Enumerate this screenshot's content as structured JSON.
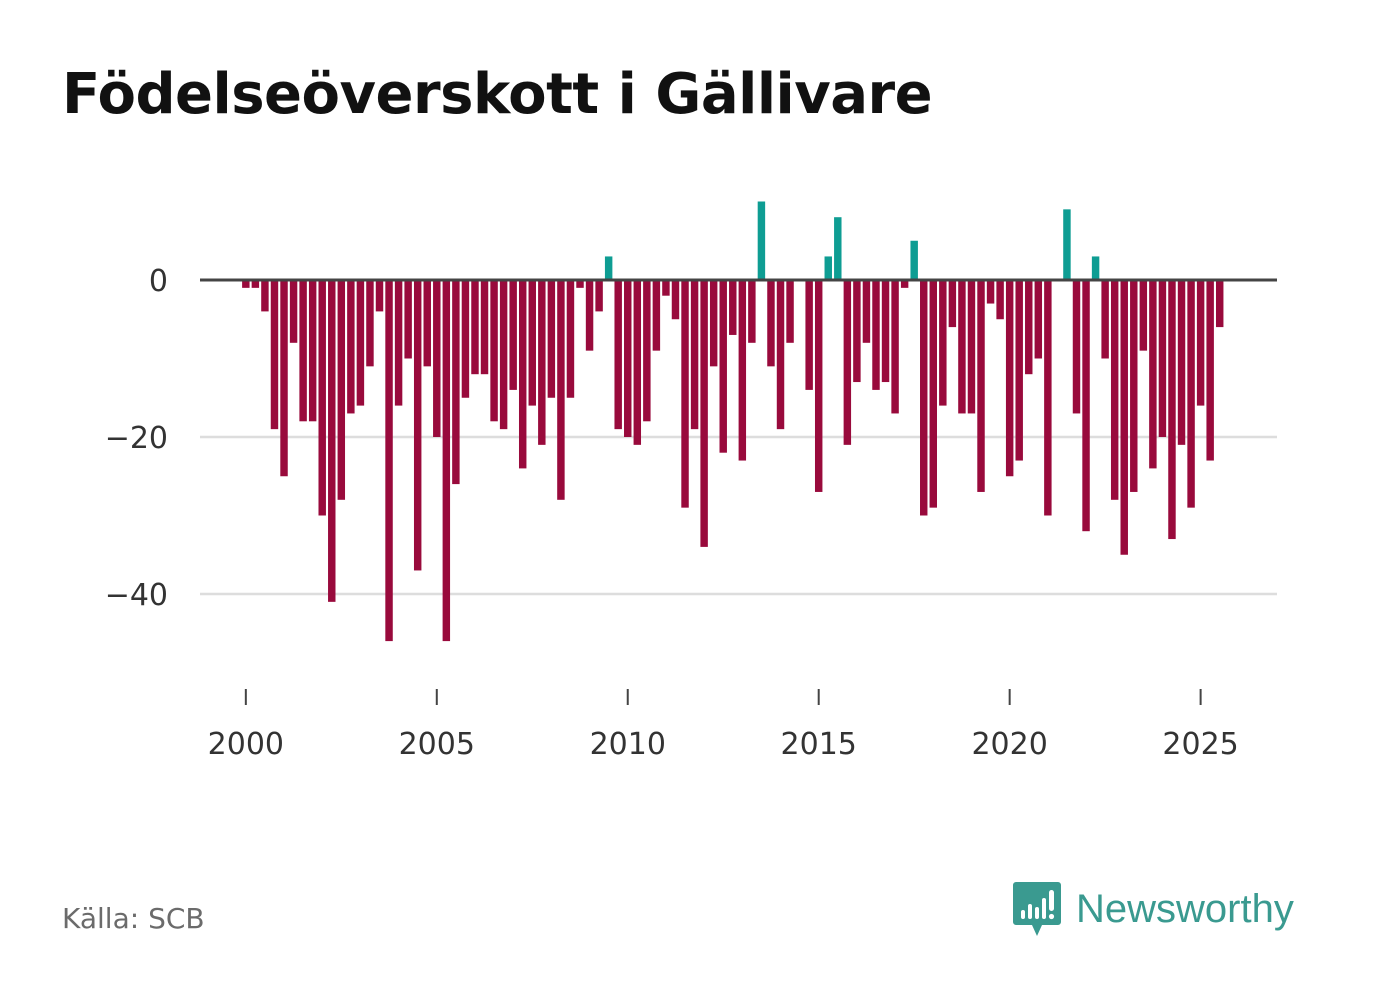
{
  "title": "Födelseöverskott i Gällivare",
  "source": "Källa: SCB",
  "brand": {
    "name": "Newsworthy",
    "icon": "newsworthy-logo-icon"
  },
  "colors": {
    "positive": "#0e9d93",
    "negative": "#990a3c",
    "zero_line": "#444444",
    "grid": "#dddddd",
    "brand": "#3a9a90"
  },
  "chart_data": {
    "type": "bar",
    "title": "Födelseöverskott i Gällivare",
    "xlabel": "",
    "ylabel": "",
    "x_start": 2000.0,
    "x_step": 0.25,
    "xlim": [
      1998.8,
      2027.0
    ],
    "ylim": [
      -51,
      13
    ],
    "xticks": [
      2000,
      2005,
      2010,
      2015,
      2020,
      2025
    ],
    "yticks": [
      0,
      -20,
      -40
    ],
    "ytick_labels": [
      "0",
      "−20",
      "−40"
    ],
    "values": [
      -1,
      -1,
      -4,
      -19,
      -25,
      -8,
      -18,
      -18,
      -30,
      -41,
      -28,
      -17,
      -16,
      -11,
      -4,
      -46,
      -16,
      -10,
      -37,
      -11,
      -20,
      -46,
      -26,
      -15,
      -12,
      -12,
      -18,
      -19,
      -14,
      -24,
      -16,
      -21,
      -15,
      -28,
      -15,
      -1,
      -9,
      -4,
      3,
      -19,
      -20,
      -21,
      -18,
      -9,
      -2,
      -5,
      -29,
      -19,
      -34,
      -11,
      -22,
      -7,
      -23,
      -8,
      10,
      -11,
      -19,
      -8,
      0,
      -14,
      -27,
      3,
      8,
      -21,
      -13,
      -8,
      -14,
      -13,
      -17,
      -1,
      5,
      -30,
      -29,
      -16,
      -6,
      -17,
      -17,
      -27,
      -3,
      -5,
      -25,
      -23,
      -12,
      -10,
      -30,
      0,
      9,
      -17,
      -32,
      3,
      -10,
      -28,
      -35,
      -27,
      -9,
      -24,
      -20,
      -33,
      -21,
      -29,
      -16,
      -23,
      -6
    ]
  }
}
